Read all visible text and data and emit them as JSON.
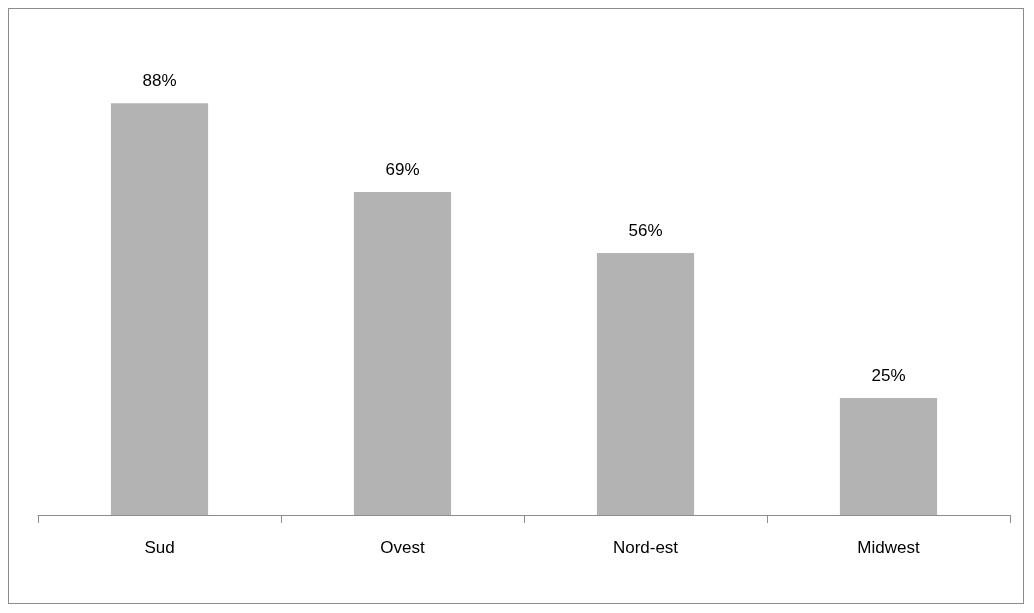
{
  "chart_data": {
    "type": "bar",
    "categories": [
      "Sud",
      "Ovest",
      "Nord-est",
      "Midwest"
    ],
    "values": [
      88,
      69,
      56,
      25
    ],
    "value_labels": [
      "88%",
      "69%",
      "56%",
      "25%"
    ],
    "color": "#b3b3b3"
  }
}
